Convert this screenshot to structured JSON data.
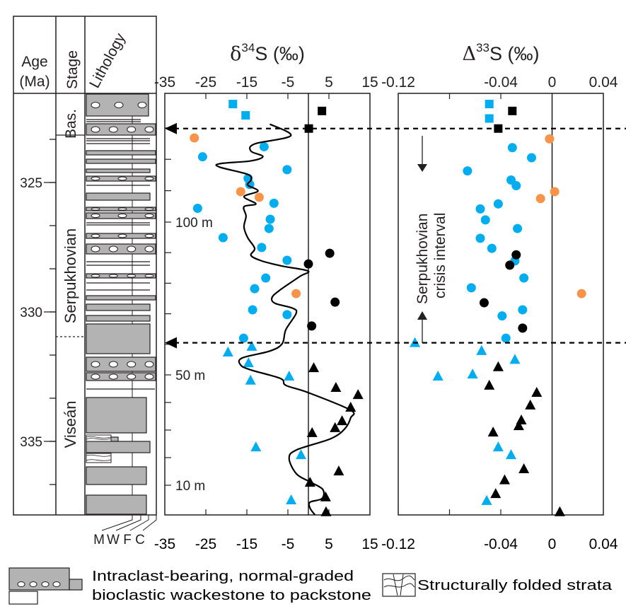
{
  "chart_data": [
    {
      "type": "table",
      "name": "stratigraphic-column",
      "headers": {
        "age": "Age\n(Ma)",
        "age_line1": "Age",
        "age_line2": "(Ma)",
        "stage": "Stage",
        "lithology": "Lithology"
      },
      "age_ticks": [
        {
          "value": 325,
          "label": "325"
        },
        {
          "value": 330,
          "label": "330"
        },
        {
          "value": 335,
          "label": "335"
        }
      ],
      "stages": [
        {
          "name": "Bas.",
          "from_m": 129.8,
          "to_m": 141
        },
        {
          "name": "Serpukhovian",
          "from_m": 60.5,
          "to_m": 129.8
        },
        {
          "name": "Viseán",
          "from_m": 0,
          "to_m": 60.5
        }
      ],
      "texture_scale_labels": [
        "M",
        "W",
        "F",
        "C"
      ]
    },
    {
      "type": "scatter",
      "name": "d34S",
      "title": "δ34S (‰)",
      "title_main": "δ",
      "title_sup": "34",
      "title_rest": "S (‰)",
      "xlabel": "δ34S (‰)",
      "xlim": [
        -35,
        15
      ],
      "xticks": [
        -35,
        -25,
        -15,
        -5,
        5,
        15
      ],
      "xtick_labels": [
        "-35",
        "-25",
        "-15",
        "-5",
        "5",
        "15"
      ],
      "reference_line_x": 0,
      "ylabel": "Stratigraphic height (m)",
      "depth_ticks": [
        {
          "value": 10,
          "label": "10 m"
        },
        {
          "value": 50,
          "label": "50 m"
        },
        {
          "value": 100,
          "label": "100 m"
        }
      ],
      "series": [
        {
          "name": "blue-squares",
          "marker": "square",
          "color": "#00aeef",
          "points": [
            [
              -18.4,
              137.6
            ],
            [
              -15.3,
              134.0
            ]
          ]
        },
        {
          "name": "black-squares",
          "marker": "square",
          "color": "#000000",
          "points": [
            [
              3.3,
              135.4
            ],
            [
              0.1,
              129.8
            ]
          ]
        },
        {
          "name": "orange-circles",
          "marker": "circle",
          "color": "#f7944a",
          "points": [
            [
              -27.8,
              126.8
            ],
            [
              -16.5,
              109.7
            ],
            [
              -12.0,
              107.9
            ],
            [
              -3.0,
              76.6
            ]
          ]
        },
        {
          "name": "blue-circles",
          "marker": "circle",
          "color": "#00aeef",
          "points": [
            [
              -10.8,
              124.0
            ],
            [
              -25.8,
              120.8
            ],
            [
              -5.2,
              116.7
            ],
            [
              -14.7,
              113.9
            ],
            [
              -14.3,
              112.0
            ],
            [
              -8.4,
              106.0
            ],
            [
              -27.0,
              104.4
            ],
            [
              -9.3,
              100.9
            ],
            [
              -9.6,
              97.9
            ],
            [
              -20.8,
              94.9
            ],
            [
              -11.4,
              91.7
            ],
            [
              -5.2,
              87.5
            ],
            [
              -10.4,
              81.7
            ],
            [
              -13.1,
              78.2
            ],
            [
              -13.6,
              71.3
            ],
            [
              -5.2,
              69.7
            ],
            [
              -15.8,
              62.0
            ]
          ]
        },
        {
          "name": "black-circles",
          "marker": "circle",
          "color": "#000000",
          "points": [
            [
              5.2,
              89.8
            ],
            [
              0.0,
              86.3
            ],
            [
              6.5,
              73.8
            ],
            [
              0.8,
              66.0
            ]
          ]
        },
        {
          "name": "blue-triangles",
          "marker": "triangle",
          "color": "#00aeef",
          "points": [
            [
              -13.8,
              59.3
            ],
            [
              -19.6,
              57.4
            ],
            [
              -14.6,
              53.9
            ],
            [
              -4.7,
              49.5
            ],
            [
              -14.1,
              48.0
            ],
            [
              -12.8,
              23.8
            ],
            [
              -1.8,
              21.0
            ],
            [
              -4.2,
              5.0
            ]
          ]
        },
        {
          "name": "black-triangles",
          "marker": "triangle",
          "color": "#000000",
          "points": [
            [
              1.3,
              52.3
            ],
            [
              6.7,
              45.4
            ],
            [
              12.1,
              42.8
            ],
            [
              10.3,
              38.2
            ],
            [
              8.2,
              33.3
            ],
            [
              6.5,
              30.8
            ],
            [
              0.9,
              29.0
            ],
            [
              7.4,
              15.1
            ],
            [
              0.4,
              11.0
            ],
            [
              4.2,
              6.0
            ],
            [
              4.3,
              1.0
            ]
          ]
        },
        {
          "name": "smoothed-trend",
          "marker": "line",
          "color": "#000000",
          "points": [
            [
              -9.4,
              131.2
            ],
            [
              -4.3,
              127.5
            ],
            [
              -13.1,
              124.9
            ],
            [
              -14.0,
              122.6
            ],
            [
              -11.1,
              120.9
            ],
            [
              -14.0,
              119.5
            ],
            [
              -21.6,
              118.6
            ],
            [
              -21.6,
              117.5
            ],
            [
              -14.8,
              115.2
            ],
            [
              -14.0,
              113.4
            ],
            [
              -14.8,
              111.8
            ],
            [
              -12.3,
              109.9
            ],
            [
              -15.7,
              108.1
            ],
            [
              -12.8,
              105.8
            ],
            [
              -15.7,
              104.9
            ],
            [
              -15.2,
              101.9
            ],
            [
              -15.7,
              98.4
            ],
            [
              -14.8,
              94.9
            ],
            [
              -13.1,
              91.4
            ],
            [
              -14.0,
              89.1
            ],
            [
              -11.4,
              87.3
            ],
            [
              -6.4,
              85.6
            ],
            [
              -0.1,
              84.0
            ],
            [
              -2.1,
              82.2
            ],
            [
              -7.2,
              77.5
            ],
            [
              -8.9,
              75.2
            ],
            [
              -8.1,
              73.4
            ],
            [
              -3.8,
              71.8
            ],
            [
              -3.0,
              70.1
            ],
            [
              -5.5,
              64.8
            ],
            [
              -6.4,
              60.2
            ],
            [
              -9.4,
              57.8
            ],
            [
              -16.2,
              55.5
            ],
            [
              -16.5,
              53.2
            ],
            [
              -14.0,
              51.6
            ],
            [
              -6.8,
              48.7
            ],
            [
              -5.5,
              46.2
            ],
            [
              -0.1,
              43.6
            ],
            [
              10.3,
              37.2
            ],
            [
              10.3,
              34.4
            ],
            [
              8.9,
              30.5
            ],
            [
              5.5,
              26.9
            ],
            [
              -2.9,
              22.8
            ],
            [
              -4.7,
              19.7
            ],
            [
              -2.9,
              14.1
            ],
            [
              0.4,
              11.2
            ],
            [
              3.5,
              8.6
            ],
            [
              3.3,
              5.5
            ],
            [
              0.4,
              4.3
            ],
            [
              0.4,
              2.3
            ],
            [
              1.6,
              0.0
            ]
          ]
        }
      ]
    },
    {
      "type": "scatter",
      "name": "D33S",
      "title": "Δ33S (‰)",
      "title_main": "Δ",
      "title_sup": "33",
      "title_rest": "S (‰)",
      "xlabel": "Δ33S (‰)",
      "xlim": [
        -0.12,
        0.04
      ],
      "xticks": [
        -0.12,
        -0.08,
        -0.04,
        0,
        0.04
      ],
      "xtick_labels": [
        "-0.12",
        "",
        "-0.04",
        "0",
        "0.04"
      ],
      "reference_line_x": 0,
      "series": [
        {
          "name": "blue-squares",
          "marker": "square",
          "color": "#00aeef",
          "points": [
            [
              -0.049,
              137.6
            ],
            [
              -0.049,
              133.0
            ]
          ]
        },
        {
          "name": "black-squares",
          "marker": "square",
          "color": "#000000",
          "points": [
            [
              -0.031,
              135.4
            ],
            [
              -0.042,
              129.8
            ]
          ]
        },
        {
          "name": "orange-circles",
          "marker": "circle",
          "color": "#f7944a",
          "points": [
            [
              -0.002,
              126.5
            ],
            [
              0.002,
              109.7
            ],
            [
              -0.009,
              107.5
            ],
            [
              0.023,
              76.6
            ]
          ]
        },
        {
          "name": "blue-circles",
          "marker": "circle",
          "color": "#00aeef",
          "points": [
            [
              -0.031,
              123.7
            ],
            [
              -0.016,
              120.5
            ],
            [
              -0.066,
              116.3
            ],
            [
              -0.032,
              113.4
            ],
            [
              -0.028,
              111.6
            ],
            [
              -0.042,
              105.8
            ],
            [
              -0.056,
              104.2
            ],
            [
              -0.052,
              100.7
            ],
            [
              -0.027,
              97.9
            ],
            [
              -0.056,
              94.7
            ],
            [
              -0.047,
              91.4
            ],
            [
              -0.029,
              87.3
            ],
            [
              -0.022,
              81.7
            ],
            [
              -0.063,
              78.5
            ],
            [
              -0.023,
              71.3
            ],
            [
              -0.039,
              69.3
            ],
            [
              -0.036,
              62.0
            ]
          ]
        },
        {
          "name": "black-circles",
          "marker": "circle",
          "color": "#000000",
          "points": [
            [
              -0.028,
              89.3
            ],
            [
              -0.033,
              85.9
            ],
            [
              -0.053,
              73.6
            ],
            [
              -0.023,
              65.3
            ]
          ]
        },
        {
          "name": "blue-triangles",
          "marker": "triangle",
          "color": "#00aeef",
          "points": [
            [
              -0.107,
              60.5
            ],
            [
              -0.055,
              57.9
            ],
            [
              -0.029,
              55.0
            ],
            [
              -0.062,
              50.2
            ],
            [
              -0.089,
              49.5
            ],
            [
              -0.042,
              23.8
            ],
            [
              -0.032,
              21.0
            ],
            [
              -0.051,
              4.8
            ]
          ]
        },
        {
          "name": "black-triangles",
          "marker": "triangle",
          "color": "#000000",
          "points": [
            [
              -0.042,
              52.6
            ],
            [
              -0.049,
              46.2
            ],
            [
              -0.012,
              43.6
            ],
            [
              -0.017,
              39.0
            ],
            [
              -0.024,
              33.6
            ],
            [
              -0.026,
              31.5
            ],
            [
              -0.046,
              29.2
            ],
            [
              -0.022,
              15.9
            ],
            [
              -0.037,
              11.9
            ],
            [
              -0.044,
              7.1
            ],
            [
              0.006,
              1.0
            ]
          ]
        }
      ]
    }
  ],
  "boundaries": [
    {
      "name": "upper-boundary",
      "depth_m": 129.8
    },
    {
      "name": "lower-boundary",
      "depth_m": 60.5
    }
  ],
  "annotation": {
    "line1": "Serpukhovian",
    "line2": "crisis interval"
  },
  "legend": {
    "intraclast_line1": "Intraclast-bearing, normal-graded",
    "intraclast_line2": "bioclastic wackestone to packstone",
    "folded": "Structurally folded strata"
  },
  "colors": {
    "blue": "#00aeef",
    "orange": "#f7944a",
    "black": "#000000",
    "litho_gray": "#b3b3b3",
    "frame": "#231f20"
  }
}
